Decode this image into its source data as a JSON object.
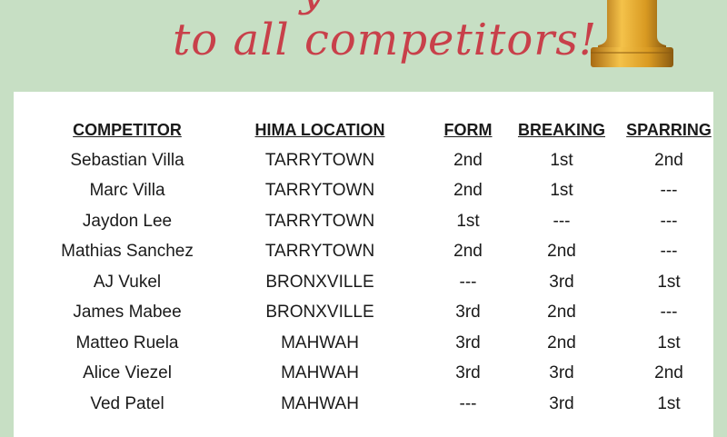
{
  "headline": {
    "line1_partial": "y",
    "line2": "to all competitors!"
  },
  "colors": {
    "background": "#c7dfc4",
    "headline": "#c8404a",
    "trophy": "#d9a22b"
  },
  "table": {
    "headers": [
      "COMPETITOR",
      "HIMA LOCATION",
      "FORM",
      "BREAKING",
      "SPARRING"
    ],
    "rows": [
      [
        "Sebastian Villa",
        "TARRYTOWN",
        "2nd",
        "1st",
        "2nd"
      ],
      [
        "Marc Villa",
        "TARRYTOWN",
        "2nd",
        "1st",
        "---"
      ],
      [
        "Jaydon Lee",
        "TARRYTOWN",
        "1st",
        "---",
        "---"
      ],
      [
        "Mathias Sanchez",
        "TARRYTOWN",
        "2nd",
        "2nd",
        "---"
      ],
      [
        "AJ Vukel",
        "BRONXVILLE",
        "---",
        "3rd",
        "1st"
      ],
      [
        "James Mabee",
        "BRONXVILLE",
        "3rd",
        "2nd",
        "---"
      ],
      [
        "Matteo Ruela",
        "MAHWAH",
        "3rd",
        "2nd",
        "1st"
      ],
      [
        "Alice Viezel",
        "MAHWAH",
        "3rd",
        "3rd",
        "2nd"
      ],
      [
        "Ved Patel",
        "MAHWAH",
        "---",
        "3rd",
        "1st"
      ]
    ]
  }
}
